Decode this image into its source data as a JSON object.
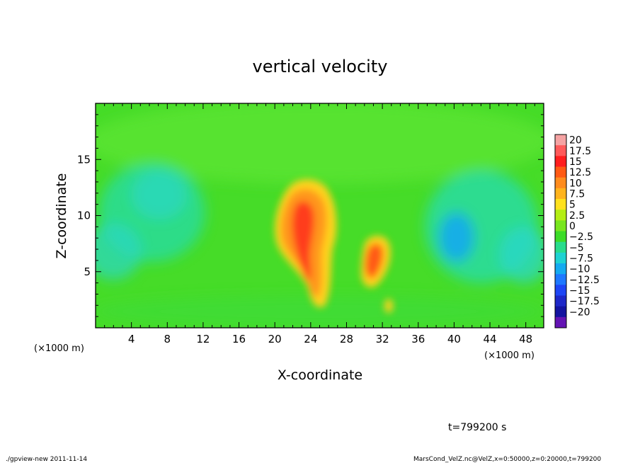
{
  "chart_data": {
    "type": "heatmap",
    "title": "vertical velocity",
    "xlabel": "X-coordinate",
    "ylabel": "Z-coordinate",
    "x_unit": "(×1000 m)",
    "x_unit_right": "(×1000 m)",
    "xlim": [
      0,
      50
    ],
    "ylim": [
      0,
      20
    ],
    "x_ticks": [
      "4",
      "8",
      "12",
      "16",
      "20",
      "24",
      "28",
      "32",
      "36",
      "40",
      "44",
      "48"
    ],
    "y_ticks": [
      "5",
      "10",
      "15"
    ],
    "colorbar": {
      "labels": [
        "20",
        "17.5",
        "15",
        "12.5",
        "10",
        "7.5",
        "5",
        "2.5",
        "0",
        "−2.5",
        "−5",
        "−7.5",
        "−10",
        "−12.5",
        "−15",
        "−17.5",
        "−20"
      ],
      "colors": [
        "#f5a3a3",
        "#ff5a5a",
        "#ff1e1e",
        "#ff5a14",
        "#ff8c1e",
        "#ffb41e",
        "#ffe11e",
        "#b4ee14",
        "#78e61e",
        "#3cdc28",
        "#28dc8c",
        "#1ed2d2",
        "#14aaf0",
        "#1e78ff",
        "#1e46f5",
        "#1e28c8",
        "#1414a0",
        "#6414b4"
      ]
    },
    "features": [
      {
        "type": "updraft",
        "x": 23.2,
        "z": 10.2,
        "w": 13.5
      },
      {
        "type": "updraft",
        "x": 24.5,
        "z": 5.5,
        "w": 9
      },
      {
        "type": "updraft",
        "x": 30.8,
        "z": 6.3,
        "w": 11
      },
      {
        "type": "updraft",
        "x": 32.6,
        "z": 2.0,
        "w": 3
      },
      {
        "type": "downdraft",
        "x": 40.0,
        "z": 7.8,
        "w": -7
      },
      {
        "type": "downdraft",
        "x": 7.0,
        "z": 11.5,
        "w": -4
      },
      {
        "type": "downdraft",
        "x": 46.0,
        "z": 7.0,
        "w": -4
      }
    ]
  },
  "annotations": {
    "time": "t=799200 s",
    "footer_left": "./gpview-new  2011-11-14",
    "footer_right": "MarsCond_VelZ.nc@VelZ,x=0:50000,z=0:20000,t=799200"
  }
}
